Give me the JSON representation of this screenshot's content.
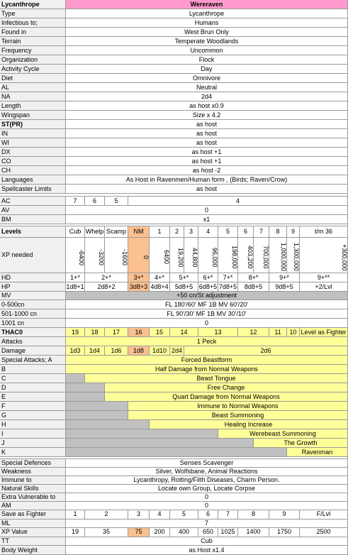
{
  "header": {
    "label": "Lycanthrope",
    "value": "Wereraven"
  },
  "rows": [
    {
      "label": "Type",
      "cells": [
        "Lycanthrope"
      ]
    },
    {
      "label": "Infectious to;",
      "cells": [
        "Humans"
      ]
    },
    {
      "label": "Found in",
      "cells": [
        "West Brun Only"
      ]
    },
    {
      "label": "Terrain",
      "cells": [
        "Temperate Woodlands"
      ]
    },
    {
      "label": "Frequency",
      "cells": [
        "Uncommon"
      ]
    },
    {
      "label": "Organization",
      "cells": [
        "Flock"
      ]
    },
    {
      "label": "Activity Cycle",
      "cells": [
        "Day"
      ]
    },
    {
      "label": "Diet",
      "cells": [
        "Omnivore"
      ]
    },
    {
      "label": "AL",
      "cells": [
        "Neutral"
      ]
    },
    {
      "label": "NA",
      "cells": [
        "2d4"
      ]
    },
    {
      "label": "Length",
      "cells": [
        "as host x0.9"
      ]
    },
    {
      "label": "Wingspan",
      "cells": [
        "Size x 4.2"
      ]
    },
    {
      "label": "ST(PR)",
      "cells": [
        "as host"
      ]
    },
    {
      "label": "IN",
      "cells": [
        "as host"
      ]
    },
    {
      "label": "WI",
      "cells": [
        "as host"
      ]
    },
    {
      "label": "DX",
      "cells": [
        "as host +1"
      ]
    },
    {
      "label": "CO",
      "cells": [
        "as host +1"
      ]
    },
    {
      "label": "CH",
      "cells": [
        "as host -2"
      ]
    },
    {
      "label": "Languages",
      "cells": [
        "As Host in Ravenmen/Human form , (Birds; Raven/Crow)"
      ]
    },
    {
      "label": "Spellcaster Limits",
      "cells": [
        "as host"
      ]
    },
    {
      "label": "AC",
      "cells": [
        "7",
        "6",
        "5",
        "4"
      ]
    },
    {
      "label": "AV",
      "cells": [
        "0"
      ]
    },
    {
      "label": "BM",
      "cells": [
        "x1"
      ]
    },
    {
      "label": "Levels",
      "cells": [
        "Cub",
        "Whelp",
        "Scamp",
        "NM",
        "1",
        "2",
        "3",
        "4",
        "5",
        "6",
        "7",
        "8",
        "9",
        "t/m 36"
      ]
    },
    {
      "label": "XP needed",
      "cells": [
        "-6400",
        "-3200",
        "-1600",
        "0",
        "6400",
        "19,200",
        "44,800",
        "96,000",
        "198,000",
        "403,200",
        "700,000",
        "1,000,000",
        "1,300,000",
        "+300,000"
      ]
    },
    {
      "label": "HD",
      "cells": [
        "1+*",
        "2+*",
        "3+*",
        "4+*",
        "5+*",
        "6+*",
        "7+*",
        "8+*",
        "9+*",
        "9+**"
      ]
    },
    {
      "label": "HP",
      "cells": [
        "1d8+1",
        "2d8+2",
        "3d8+3",
        "4d8+4",
        "5d8+5",
        "6d8+5",
        "7d8+5",
        "8d8+5",
        "9d8+5",
        "+2/Lvl"
      ]
    },
    {
      "label": "MV",
      "cells": [
        "+50 cn/St adjustment"
      ]
    },
    {
      "label": "0-500cn",
      "cells": [
        "FL 180'/60' MF 1B MV 60'/20'"
      ]
    },
    {
      "label": "501-1000 cn",
      "cells": [
        "FL 90'/30' MF 1B MV 30'/10'"
      ]
    },
    {
      "label": "1001 cn",
      "cells": [
        "0"
      ]
    },
    {
      "label": "THAC0",
      "cells": [
        "19",
        "18",
        "17",
        "16",
        "15",
        "14",
        "13",
        "12",
        "11",
        "10",
        "Level as Fighter"
      ]
    },
    {
      "label": "Attacks",
      "cells": [
        "1 Peck"
      ]
    },
    {
      "label": "Damage",
      "cells": [
        "1d3",
        "1d4",
        "1d6",
        "1d8",
        "1d10",
        "2d4",
        "2d6"
      ]
    },
    {
      "label": "Special Attacks; A",
      "cells": [
        "Forced Beastform"
      ]
    },
    {
      "label": "B",
      "cells": [
        "Half Damage from Normal Weapons"
      ]
    },
    {
      "label": "C",
      "cells": [
        "Beast Tongue"
      ]
    },
    {
      "label": "D",
      "cells": [
        "Free Change"
      ]
    },
    {
      "label": "E",
      "cells": [
        "Quart Damage from Normal Weapons"
      ]
    },
    {
      "label": "F",
      "cells": [
        "Immune to Normal Weapons"
      ]
    },
    {
      "label": "G",
      "cells": [
        "Beast Summoning"
      ]
    },
    {
      "label": "H",
      "cells": [
        "Healing Increase"
      ]
    },
    {
      "label": "I",
      "cells": [
        "Werebeast Summoning"
      ]
    },
    {
      "label": "J",
      "cells": [
        "The Growth"
      ]
    },
    {
      "label": "K",
      "cells": [
        "Ravenman"
      ]
    },
    {
      "label": "Special Defences",
      "cells": [
        "Senses Scavenger"
      ]
    },
    {
      "label": "Weakness",
      "cells": [
        "Silver, Wolfsbane, Animal Reactions"
      ]
    },
    {
      "label": "Immune to",
      "cells": [
        "Lycanthropy, Rotting/Filth Diseases, Charm Person."
      ]
    },
    {
      "label": "Natural Skills",
      "cells": [
        "Locate own Group, Locate Corpse"
      ]
    },
    {
      "label": "Extra Vulnerable to",
      "cells": [
        "0"
      ]
    },
    {
      "label": "AM",
      "cells": [
        "0"
      ]
    },
    {
      "label": "Save as Fighter",
      "cells": [
        "1",
        "2",
        "3",
        "4",
        "5",
        "6",
        "7",
        "8",
        "9",
        "F/Lvl"
      ]
    },
    {
      "label": "ML",
      "cells": [
        "7"
      ]
    },
    {
      "label": "XP Value",
      "cells": [
        "19",
        "35",
        "75",
        "200",
        "400",
        "650",
        "1025",
        "1400",
        "1750",
        "2500"
      ]
    },
    {
      "label": "TT",
      "cells": [
        "Cub"
      ]
    },
    {
      "label": "Body Weight",
      "cells": [
        "as Host x1.4"
      ]
    }
  ]
}
